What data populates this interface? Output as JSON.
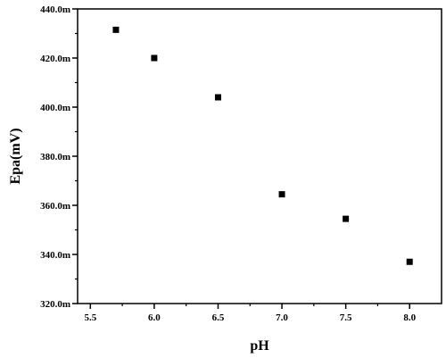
{
  "chart_data": {
    "type": "scatter",
    "title": "",
    "xlabel": "pH",
    "ylabel": "Epa(mV)",
    "xlim": [
      5.4,
      8.25
    ],
    "ylim": [
      320,
      440
    ],
    "x_ticks": [
      5.5,
      6.0,
      6.5,
      7.0,
      7.5,
      8.0
    ],
    "x_tick_labels": [
      "5.5",
      "6.0",
      "6.5",
      "7.0",
      "7.5",
      "8.0"
    ],
    "y_ticks": [
      320,
      340,
      360,
      380,
      400,
      420,
      440
    ],
    "y_tick_labels": [
      "320.0m",
      "340.0m",
      "360.0m",
      "380.0m",
      "400.0m",
      "420.0m",
      "440.0m"
    ],
    "grid": false,
    "legend": "none",
    "marker": "square",
    "marker_color": "#000000",
    "series": [
      {
        "x": [
          5.7,
          6.0,
          6.5,
          7.0,
          7.5,
          8.0
        ],
        "y": [
          431.5,
          420,
          404,
          364.5,
          354.5,
          337
        ]
      }
    ]
  }
}
